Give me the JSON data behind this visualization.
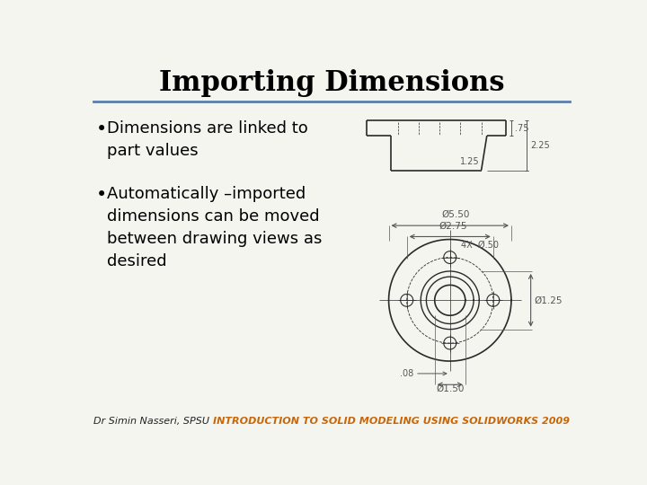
{
  "title": "Importing Dimensions",
  "title_fontsize": 22,
  "title_fontweight": "bold",
  "title_color": "#000000",
  "separator_color": "#5a7faa",
  "bg_color": "#f5f5f0",
  "bullet_points": [
    "Dimensions are linked to\npart values",
    "Automatically –imported\ndimensions can be moved\nbetween drawing views as\ndesired"
  ],
  "bullet_fontsize": 13,
  "bullet_color": "#000000",
  "footer_left": "Dr Simin Nasseri, SPSU",
  "footer_right": "INTRODUCTION TO SOLID MODELING USING SOLIDWORKS 2009",
  "footer_color_left": "#222222",
  "footer_color_right": "#c8670a",
  "footer_fontsize": 8,
  "drawing_color": "#2a2a2a",
  "drawing_color_dim": "#555555"
}
